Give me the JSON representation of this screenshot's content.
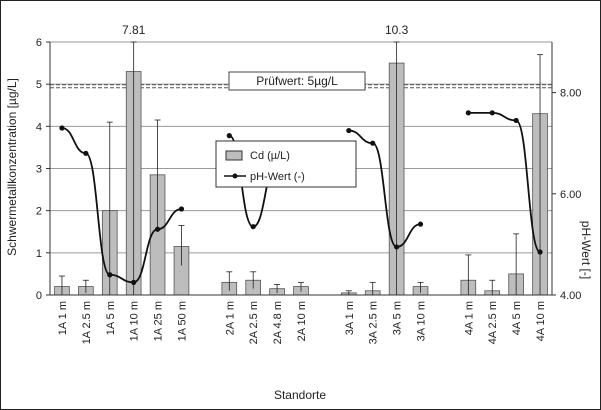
{
  "chart_data": {
    "type": "bar",
    "title": "",
    "xlabel": "Standorte",
    "ylabel": "Schwermetallkonzentration [µg/L]",
    "y2label": "pH-Wert [-]",
    "ylim": [
      0,
      6
    ],
    "y2lim": [
      4,
      9
    ],
    "yticks": [
      "0",
      "1",
      "2",
      "3",
      "4",
      "5",
      "6"
    ],
    "y2ticks": [
      "4.00",
      "6.00",
      "8.00"
    ],
    "grid": true,
    "legend_position": "center",
    "categories": [
      "1A 1 m",
      "1A 2.5 m",
      "1A 5 m",
      "1A 10 m",
      "1A 25 m",
      "1A 50 m",
      "",
      "2A 1 m",
      "2A 2.5 m",
      "2A 4.8 m",
      "2A 10 m",
      "",
      "3A 1 m",
      "3A 2.5 m",
      "3A 5 m",
      "3A 10 m",
      "",
      "4A 1 m",
      "4A 2.5 m",
      "4A 5 m",
      "4A 10 m"
    ],
    "series": [
      {
        "name": "Cd (µ/L)",
        "kind": "bar",
        "color": "#bdbdbd",
        "values": [
          0.2,
          0.2,
          2.0,
          5.3,
          2.85,
          1.15,
          null,
          0.3,
          0.35,
          0.15,
          0.2,
          null,
          0.05,
          0.1,
          5.5,
          0.2,
          null,
          0.35,
          0.1,
          0.5,
          4.3
        ],
        "err_low": [
          0.0,
          0.05,
          0.0,
          0.0,
          1.5,
          0.7,
          null,
          0.1,
          0.15,
          0.05,
          0.08,
          null,
          0.0,
          0.0,
          0.0,
          0.05,
          null,
          0.0,
          0.0,
          0.0,
          0.0
        ],
        "err_high": [
          0.45,
          0.35,
          4.1,
          6.0,
          4.15,
          1.65,
          null,
          0.55,
          0.55,
          0.25,
          0.3,
          null,
          0.1,
          0.3,
          6.0,
          0.3,
          null,
          0.95,
          0.35,
          1.45,
          5.7
        ]
      },
      {
        "name": "pH-Wert (-)",
        "kind": "line",
        "color": "#111111",
        "axis": "y2",
        "values": [
          7.3,
          6.8,
          4.4,
          4.25,
          5.3,
          5.7,
          null,
          7.15,
          5.35,
          6.6,
          6.6,
          null,
          7.25,
          7.0,
          4.95,
          5.4,
          null,
          7.6,
          7.6,
          7.45,
          4.85
        ]
      }
    ],
    "reference_line": {
      "label": "Prüfwert: 5µg/L",
      "value": 4.95
    },
    "annotations": [
      {
        "text": "7.81",
        "category_index": 3
      },
      {
        "text": "10.3",
        "category_index": 14
      }
    ]
  }
}
